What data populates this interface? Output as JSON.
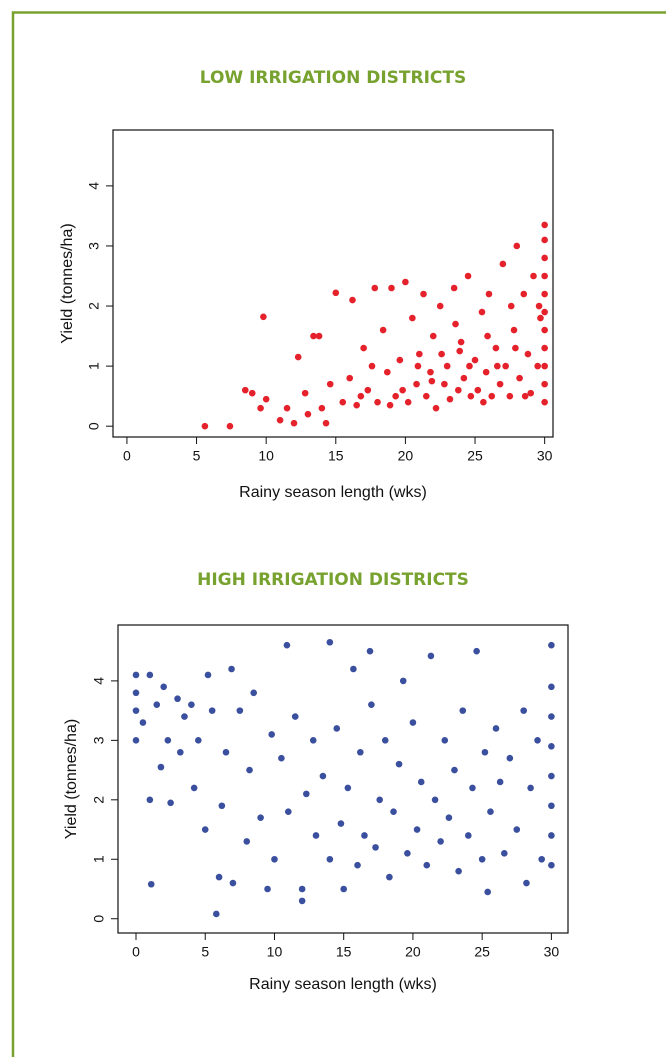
{
  "chart_data": [
    {
      "type": "scatter",
      "title": "LOW IRRIGATION DISTRICTS",
      "xlabel": "Rainy season length (wks)",
      "ylabel": "Yield (tonnes/ha)",
      "color": "#e5222b",
      "xlim": [
        -1.0,
        30.6
      ],
      "ylim": [
        -0.18,
        4.93
      ],
      "xticks": [
        0,
        5,
        10,
        15,
        20,
        25,
        30
      ],
      "yticks": [
        0,
        1,
        2,
        3,
        4
      ],
      "x": [
        5.6,
        7.4,
        8.5,
        9,
        9.6,
        9.8,
        10,
        11,
        11.5,
        12,
        12.3,
        12.8,
        13,
        13.4,
        13.8,
        14,
        14.3,
        14.6,
        15,
        15.5,
        16,
        16.2,
        16.5,
        17,
        17.3,
        17.8,
        18,
        18.4,
        18.7,
        19,
        19.3,
        19.6,
        20,
        20.2,
        20.5,
        20.8,
        21,
        21.3,
        21.5,
        21.8,
        22,
        22.2,
        22.5,
        22.8,
        23,
        23.2,
        23.5,
        23.8,
        24,
        24.2,
        24.5,
        24.7,
        25,
        25.2,
        25.5,
        25.8,
        26,
        26.2,
        26.5,
        26.8,
        27,
        27.2,
        27.5,
        27.8,
        28,
        28.2,
        28.5,
        28.8,
        29,
        29.2,
        29.5,
        29.7,
        30,
        30,
        30,
        30,
        30,
        30,
        30,
        30,
        30,
        30,
        30,
        22.6,
        23.6,
        24.6,
        25.6,
        26.6,
        27.6,
        28.6,
        19.8,
        20.9,
        18.9,
        17.6,
        16.8,
        21.9,
        23.9,
        25.9,
        27.9,
        29.6
      ],
      "y": [
        0,
        0,
        0.6,
        0.55,
        0.3,
        1.82,
        0.45,
        0.1,
        0.3,
        0.05,
        1.15,
        0.55,
        0.2,
        1.5,
        1.5,
        0.3,
        0.05,
        0.7,
        2.22,
        0.4,
        0.8,
        2.1,
        0.35,
        1.3,
        0.6,
        2.3,
        0.4,
        1.6,
        0.9,
        2.3,
        0.5,
        1.1,
        2.4,
        0.4,
        1.8,
        0.7,
        1.2,
        2.2,
        0.5,
        0.9,
        1.5,
        0.3,
        2.0,
        0.7,
        1.0,
        0.45,
        2.3,
        0.6,
        1.4,
        0.8,
        2.5,
        0.5,
        1.1,
        0.6,
        1.9,
        0.9,
        2.2,
        0.5,
        1.3,
        0.7,
        2.7,
        1.0,
        0.5,
        1.6,
        3.0,
        0.8,
        2.2,
        1.2,
        0.55,
        2.5,
        1.0,
        1.8,
        0.4,
        0.7,
        1.0,
        1.3,
        1.6,
        1.9,
        2.2,
        2.5,
        2.8,
        3.1,
        3.35,
        1.2,
        1.7,
        1.0,
        0.4,
        1.0,
        2.0,
        0.5,
        0.6,
        1.0,
        0.35,
        1.0,
        0.5,
        0.75,
        1.25,
        1.5,
        1.3,
        2.0
      ]
    },
    {
      "type": "scatter",
      "title": "HIGH IRRIGATION DISTRICTS",
      "xlabel": "Rainy season length (wks)",
      "ylabel": "Yield (tonnes/ha)",
      "color": "#3a4f9e",
      "xlim": [
        -1.3,
        31.2
      ],
      "ylim": [
        -0.24,
        4.94
      ],
      "xticks": [
        0,
        5,
        10,
        15,
        20,
        25,
        30
      ],
      "yticks": [
        0,
        1,
        2,
        3,
        4
      ],
      "x": [
        0,
        0,
        0,
        0,
        0.5,
        1,
        1,
        1.1,
        1.5,
        1.8,
        2,
        2.3,
        2.5,
        3,
        3.2,
        3.5,
        4,
        4.2,
        4.5,
        5,
        5.2,
        5.5,
        5.8,
        6,
        6.2,
        6.5,
        6.9,
        7,
        7.5,
        8,
        8.2,
        8.5,
        9,
        9.5,
        9.8,
        10,
        10.5,
        10.9,
        11,
        11.5,
        12,
        12,
        12.3,
        12.8,
        13,
        13.5,
        14,
        14,
        14.5,
        14.8,
        15,
        15.3,
        15.7,
        16,
        16.2,
        16.5,
        16.9,
        17,
        17.3,
        17.6,
        18,
        18.3,
        18.6,
        19,
        19.3,
        19.6,
        20,
        20.3,
        20.6,
        21,
        21.3,
        21.6,
        22,
        22.3,
        22.6,
        23,
        23.3,
        23.6,
        24,
        24.3,
        24.6,
        25,
        25.2,
        25.4,
        25.6,
        26,
        26.3,
        26.6,
        27,
        27.5,
        28,
        28.2,
        28.5,
        29,
        29.3,
        30,
        30,
        30,
        30,
        30,
        30,
        30,
        30
      ],
      "y": [
        4.1,
        3.8,
        3.5,
        3.0,
        3.3,
        4.1,
        2.0,
        0.58,
        3.6,
        2.55,
        3.9,
        3.0,
        1.95,
        3.7,
        2.8,
        3.4,
        3.6,
        2.2,
        3.0,
        1.5,
        4.1,
        3.5,
        0.08,
        0.7,
        1.9,
        2.8,
        4.2,
        0.6,
        3.5,
        1.3,
        2.5,
        3.8,
        1.7,
        0.5,
        3.1,
        1.0,
        2.7,
        4.6,
        1.8,
        3.4,
        0.3,
        0.5,
        2.1,
        3.0,
        1.4,
        2.4,
        4.65,
        1.0,
        3.2,
        1.6,
        0.5,
        2.2,
        4.2,
        0.9,
        2.8,
        1.4,
        4.5,
        3.6,
        1.2,
        2.0,
        3.0,
        0.7,
        1.8,
        2.6,
        4.0,
        1.1,
        3.3,
        1.5,
        2.3,
        0.9,
        4.42,
        2.0,
        1.3,
        3.0,
        1.7,
        2.5,
        0.8,
        3.5,
        1.4,
        2.2,
        4.5,
        1.0,
        2.8,
        0.45,
        1.8,
        3.2,
        2.3,
        1.1,
        2.7,
        1.5,
        3.5,
        0.6,
        2.2,
        3.0,
        1.0,
        0.9,
        1.4,
        1.9,
        2.4,
        2.9,
        3.4,
        3.9,
        4.6
      ]
    }
  ]
}
